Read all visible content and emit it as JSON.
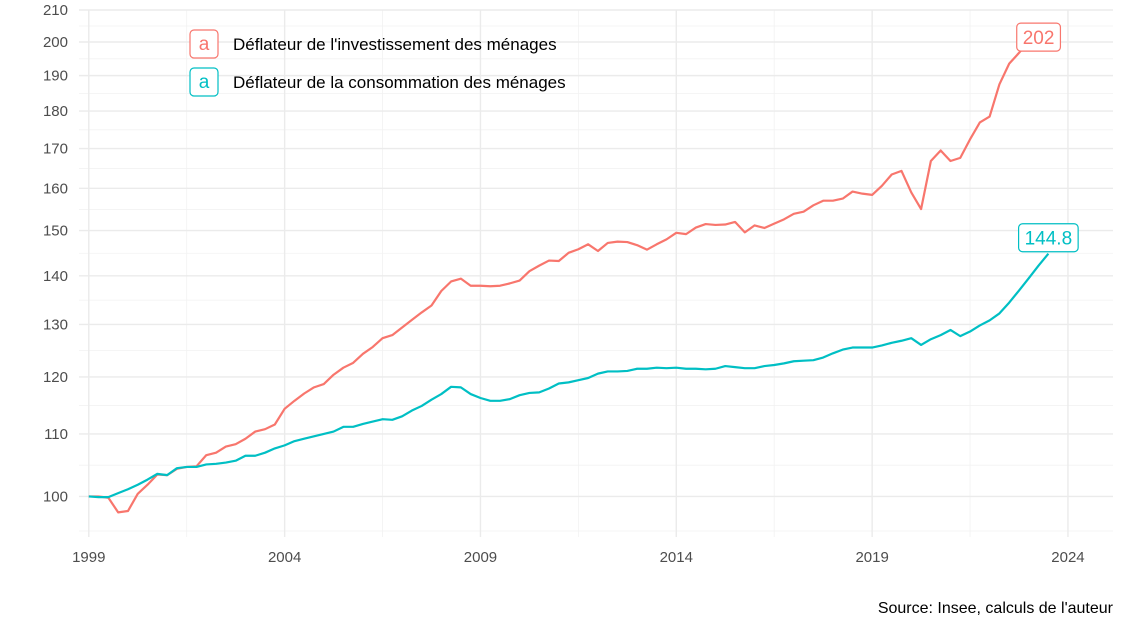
{
  "chart_data": {
    "type": "line",
    "title": "",
    "xlabel": "",
    "ylabel": "",
    "y_scale": "log",
    "ylim": [
      94,
      210
    ],
    "xlim": [
      1998.75,
      2025.15
    ],
    "x_ticks": [
      1999,
      2004,
      2009,
      2014,
      2019,
      2024
    ],
    "y_ticks": [
      100,
      110,
      120,
      130,
      140,
      150,
      160,
      170,
      180,
      190,
      200,
      210
    ],
    "grid": true,
    "legend_position": "top-left",
    "legend_key_glyph": "a",
    "series": [
      {
        "name": "Déflateur de l'investissement des ménages",
        "color": "#F8766D",
        "end_label": "202",
        "x": [
          1999.0,
          1999.25,
          1999.5,
          1999.75,
          2000.0,
          2000.25,
          2000.5,
          2000.75,
          2001.0,
          2001.25,
          2001.5,
          2001.75,
          2002.0,
          2002.25,
          2002.5,
          2002.75,
          2003.0,
          2003.25,
          2003.5,
          2003.75,
          2004.0,
          2004.25,
          2004.5,
          2004.75,
          2005.0,
          2005.25,
          2005.5,
          2005.75,
          2006.0,
          2006.25,
          2006.5,
          2006.75,
          2007.0,
          2007.25,
          2007.5,
          2007.75,
          2008.0,
          2008.25,
          2008.5,
          2008.75,
          2009.0,
          2009.25,
          2009.5,
          2009.75,
          2010.0,
          2010.25,
          2010.5,
          2010.75,
          2011.0,
          2011.25,
          2011.5,
          2011.75,
          2012.0,
          2012.25,
          2012.5,
          2012.75,
          2013.0,
          2013.25,
          2013.5,
          2013.75,
          2014.0,
          2014.25,
          2014.5,
          2014.75,
          2015.0,
          2015.25,
          2015.5,
          2015.75,
          2016.0,
          2016.25,
          2016.5,
          2016.75,
          2017.0,
          2017.25,
          2017.5,
          2017.75,
          2018.0,
          2018.25,
          2018.5,
          2018.75,
          2019.0,
          2019.25,
          2019.5,
          2019.75,
          2020.0,
          2020.25,
          2020.5,
          2020.75,
          2021.0,
          2021.25,
          2021.5,
          2021.75,
          2022.0,
          2022.25,
          2022.5,
          2022.75,
          2023.0,
          2023.25
        ],
        "y": [
          100.0,
          100.0,
          99.8,
          97.6,
          97.8,
          100.4,
          101.8,
          103.4,
          103.3,
          104.3,
          104.6,
          104.7,
          106.5,
          106.9,
          107.9,
          108.3,
          109.2,
          110.4,
          110.8,
          111.6,
          114.3,
          115.7,
          117.0,
          118.1,
          118.7,
          120.4,
          121.7,
          122.6,
          124.3,
          125.6,
          127.3,
          127.9,
          129.4,
          130.9,
          132.4,
          133.8,
          136.8,
          138.8,
          139.4,
          137.9,
          137.9,
          137.8,
          137.9,
          138.4,
          139.0,
          141.0,
          142.2,
          143.3,
          143.2,
          145.0,
          145.8,
          146.9,
          145.4,
          147.2,
          147.5,
          147.4,
          146.7,
          145.7,
          146.9,
          148.0,
          149.5,
          149.2,
          150.7,
          151.5,
          151.3,
          151.4,
          152.0,
          149.6,
          151.2,
          150.6,
          151.6,
          152.6,
          153.9,
          154.4,
          155.9,
          157.0,
          157.0,
          157.5,
          159.2,
          158.7,
          158.4,
          160.6,
          163.4,
          164.3,
          159.0,
          155.0,
          166.8,
          169.5,
          166.8,
          167.6,
          172.4,
          176.9,
          178.5,
          187.5,
          193.5,
          196.7,
          200.4,
          201.5
        ]
      },
      {
        "name": "Déflateur de la consommation des ménages",
        "color": "#00BFC4",
        "end_label": "144.8",
        "x": [
          1999.0,
          1999.25,
          1999.5,
          1999.75,
          2000.0,
          2000.25,
          2000.5,
          2000.75,
          2001.0,
          2001.25,
          2001.5,
          2001.75,
          2002.0,
          2002.25,
          2002.5,
          2002.75,
          2003.0,
          2003.25,
          2003.5,
          2003.75,
          2004.0,
          2004.25,
          2004.5,
          2004.75,
          2005.0,
          2005.25,
          2005.5,
          2005.75,
          2006.0,
          2006.25,
          2006.5,
          2006.75,
          2007.0,
          2007.25,
          2007.5,
          2007.75,
          2008.0,
          2008.25,
          2008.5,
          2008.75,
          2009.0,
          2009.25,
          2009.5,
          2009.75,
          2010.0,
          2010.25,
          2010.5,
          2010.75,
          2011.0,
          2011.25,
          2011.5,
          2011.75,
          2012.0,
          2012.25,
          2012.5,
          2012.75,
          2013.0,
          2013.25,
          2013.5,
          2013.75,
          2014.0,
          2014.25,
          2014.5,
          2014.75,
          2015.0,
          2015.25,
          2015.5,
          2015.75,
          2016.0,
          2016.25,
          2016.5,
          2016.75,
          2017.0,
          2017.25,
          2017.5,
          2017.75,
          2018.0,
          2018.25,
          2018.5,
          2018.75,
          2019.0,
          2019.25,
          2019.5,
          2019.75,
          2020.0,
          2020.25,
          2020.5,
          2020.75,
          2021.0,
          2021.25,
          2021.5,
          2021.75,
          2022.0,
          2022.25,
          2022.5,
          2022.75,
          2023.0,
          2023.25,
          2023.5
        ],
        "y": [
          100.0,
          99.9,
          99.9,
          100.5,
          101.1,
          101.8,
          102.6,
          103.5,
          103.3,
          104.4,
          104.6,
          104.6,
          105.0,
          105.1,
          105.3,
          105.6,
          106.4,
          106.4,
          106.9,
          107.6,
          108.1,
          108.8,
          109.2,
          109.6,
          110.0,
          110.4,
          111.2,
          111.2,
          111.7,
          112.1,
          112.5,
          112.4,
          113.0,
          114.0,
          114.8,
          115.9,
          116.9,
          118.2,
          118.1,
          116.9,
          116.2,
          115.7,
          115.7,
          116.0,
          116.7,
          117.1,
          117.2,
          117.9,
          118.8,
          119.0,
          119.4,
          119.8,
          120.6,
          121.0,
          121.0,
          121.1,
          121.5,
          121.5,
          121.7,
          121.6,
          121.7,
          121.5,
          121.5,
          121.4,
          121.5,
          122.0,
          121.8,
          121.6,
          121.6,
          122.0,
          122.2,
          122.5,
          122.9,
          123.0,
          123.1,
          123.6,
          124.4,
          125.1,
          125.5,
          125.5,
          125.5,
          125.9,
          126.4,
          126.8,
          127.3,
          126.0,
          127.1,
          127.9,
          128.9,
          127.7,
          128.6,
          129.8,
          130.8,
          132.2,
          134.4,
          136.9,
          139.5,
          142.2,
          144.8
        ]
      }
    ]
  },
  "source": "Source: Insee, calculs de l'auteur"
}
